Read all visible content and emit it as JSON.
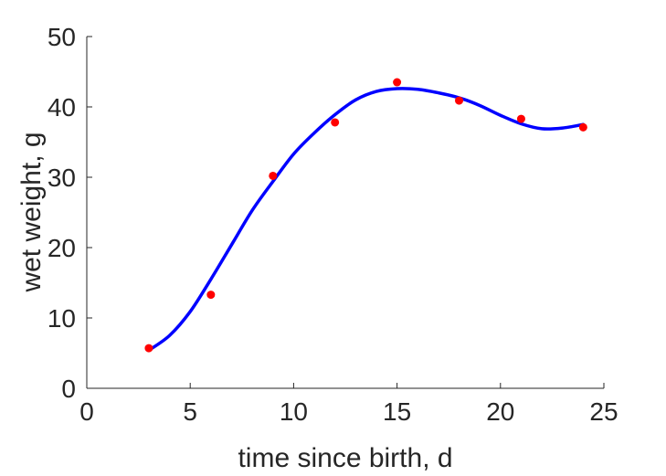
{
  "chart_data": {
    "type": "scatter",
    "title": "",
    "xlabel": "time since birth, d",
    "ylabel": "wet weight, g",
    "xlim": [
      0,
      25
    ],
    "ylim": [
      0,
      50
    ],
    "xticks": [
      0,
      5,
      10,
      15,
      20,
      25
    ],
    "yticks": [
      0,
      10,
      20,
      30,
      40,
      50
    ],
    "grid": false,
    "box": "left-bottom",
    "series": [
      {
        "type": "scatter",
        "color": "#ff0000",
        "marker": "filled-circle",
        "x": [
          3,
          6,
          9,
          12,
          15,
          18,
          21,
          24
        ],
        "y": [
          5.7,
          13.3,
          30.2,
          37.8,
          43.5,
          40.9,
          38.3,
          37.1
        ]
      },
      {
        "type": "line",
        "color": "#0000ff",
        "x": [
          3,
          4,
          5,
          6,
          7,
          8,
          9,
          10,
          11,
          12,
          13,
          14,
          15,
          16,
          17,
          18,
          19,
          20,
          21,
          22,
          23,
          24
        ],
        "y": [
          5.4,
          7.5,
          10.9,
          15.5,
          20.4,
          25.3,
          29.4,
          33.3,
          36.3,
          38.9,
          41.0,
          42.2,
          42.6,
          42.5,
          42.0,
          41.3,
          40.2,
          38.8,
          37.6,
          36.9,
          37.0,
          37.5
        ]
      }
    ]
  }
}
